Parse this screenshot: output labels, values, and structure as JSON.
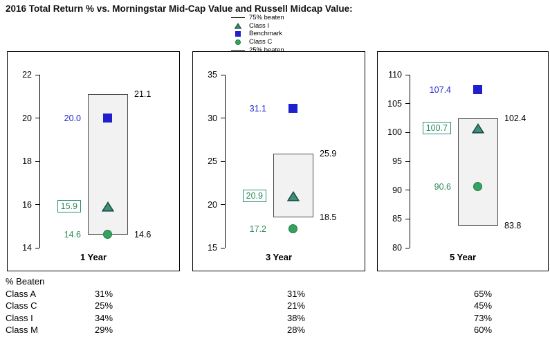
{
  "chart_data": {
    "type": "floating-bar-with-markers",
    "title": "2016 Total Return % vs. Morningstar Mid-Cap Value and Russell Midcap Value:",
    "legend": [
      {
        "label": "75% beaten",
        "marker": "line"
      },
      {
        "label": "Class I",
        "marker": "triangle"
      },
      {
        "label": "Benchmark",
        "marker": "square"
      },
      {
        "label": "Class C",
        "marker": "circle"
      },
      {
        "label": "25% beaten",
        "marker": "line"
      }
    ],
    "panels": [
      {
        "name": "1 Year",
        "axis": {
          "min": 14,
          "max": 22,
          "ticks": [
            22,
            20,
            18,
            16,
            14
          ]
        },
        "box": {
          "high": 21.1,
          "low": 14.6
        },
        "markers": {
          "benchmark": 20.0,
          "class_i": 15.9,
          "class_c": 14.6
        },
        "labels": {
          "benchmark": "20.0",
          "class_i": "15.9",
          "class_c": "14.6",
          "box_high": "21.1",
          "box_low": "14.6"
        }
      },
      {
        "name": "3 Year",
        "axis": {
          "min": 15,
          "max": 35,
          "ticks": [
            35,
            30,
            25,
            20,
            15
          ]
        },
        "box": {
          "high": 25.9,
          "low": 18.5
        },
        "markers": {
          "benchmark": 31.1,
          "class_i": 20.9,
          "class_c": 17.2
        },
        "labels": {
          "benchmark": "31.1",
          "class_i": "20.9",
          "class_c": "17.2",
          "box_high": "25.9",
          "box_low": "18.5"
        }
      },
      {
        "name": "5 Year",
        "axis": {
          "min": 80,
          "max": 110,
          "ticks": [
            110,
            105,
            100,
            95,
            90,
            85,
            80
          ]
        },
        "box": {
          "high": 102.4,
          "low": 83.8
        },
        "markers": {
          "benchmark": 107.4,
          "class_i": 100.7,
          "class_c": 90.6
        },
        "labels": {
          "benchmark": "107.4",
          "class_i": "100.7",
          "class_c": "90.6",
          "box_high": "102.4",
          "box_low": "83.8"
        }
      }
    ]
  },
  "table": {
    "header": "% Beaten",
    "rows": [
      {
        "label": "Class A",
        "values": [
          "31%",
          "31%",
          "65%"
        ]
      },
      {
        "label": "Class C",
        "values": [
          "25%",
          "21%",
          "45%"
        ]
      },
      {
        "label": "Class I",
        "values": [
          "34%",
          "38%",
          "73%"
        ]
      },
      {
        "label": "Class M",
        "values": [
          "29%",
          "28%",
          "60%"
        ]
      }
    ]
  },
  "colors": {
    "benchmark_blue": "#1f1fcd",
    "class_i_fill": "#3d8f7c",
    "class_i_border": "#1c4f44",
    "class_c_fill": "#36a261",
    "class_c_border": "#1f7a45",
    "value_green": "#2e8b57",
    "box_fill": "#f2f2f2",
    "box_border": "#4a4a4a",
    "axis_black": "#000000"
  }
}
